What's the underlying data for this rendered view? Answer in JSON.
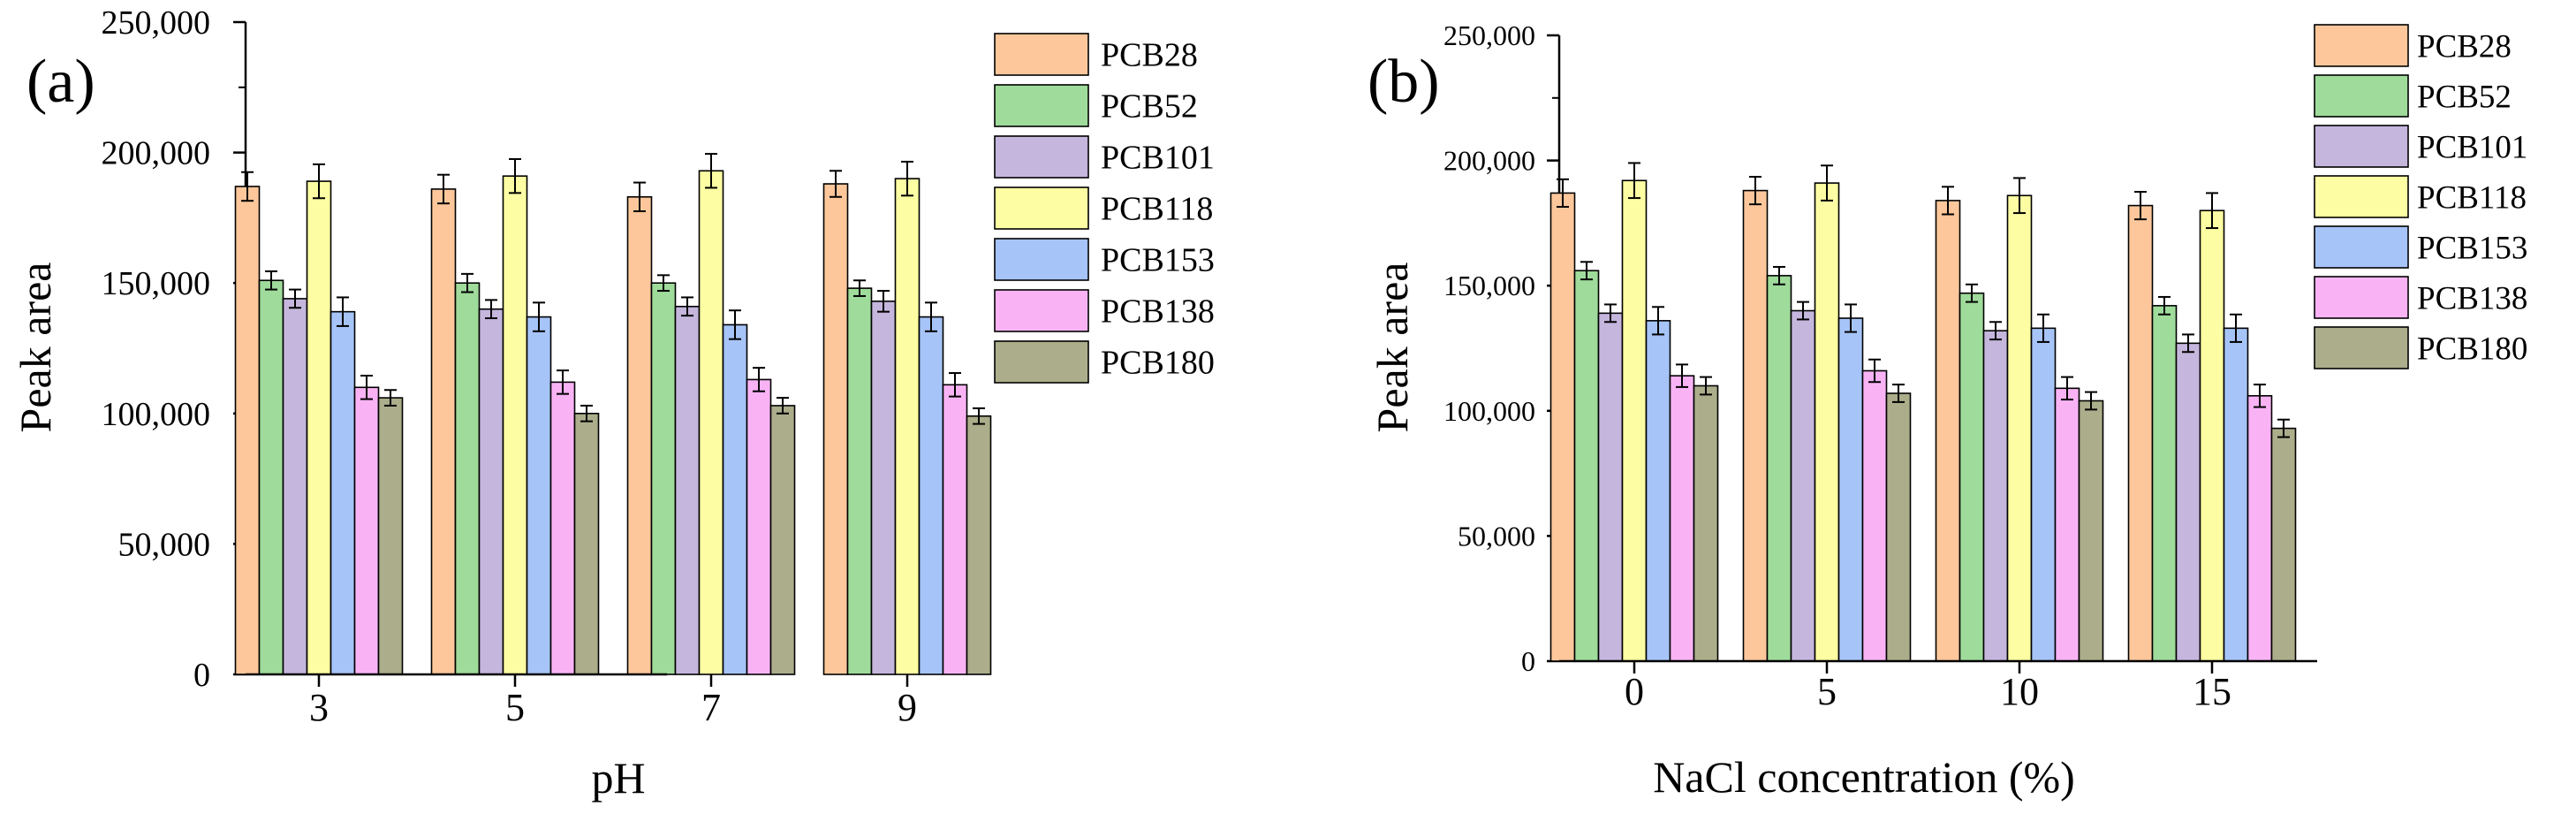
{
  "colors": {
    "PCB28": "#fdc79b",
    "PCB52": "#9fdb9b",
    "PCB101": "#c5b6dd",
    "PCB118": "#fdfda3",
    "PCB153": "#a6c4f7",
    "PCB138": "#f9b3f5",
    "PCB180": "#acad8b"
  },
  "chart_data": [
    {
      "panel": "(a)",
      "type": "bar",
      "title": "",
      "xlabel": "pH",
      "ylabel": "Peak area",
      "ylim": [
        0,
        250000
      ],
      "yticks": [
        0,
        50000,
        100000,
        150000,
        200000,
        250000
      ],
      "ytick_labels": [
        "0",
        "50,000",
        "100,000",
        "150,000",
        "200,000",
        "250,000"
      ],
      "categories": [
        "3",
        "5",
        "7",
        "9"
      ],
      "legend_position": "top-right",
      "series": [
        {
          "name": "PCB28",
          "values": [
            187000,
            186000,
            183000,
            188000
          ],
          "errors": [
            5500,
            5500,
            5500,
            5000
          ]
        },
        {
          "name": "PCB52",
          "values": [
            151000,
            150000,
            150000,
            148000
          ],
          "errors": [
            3500,
            3500,
            3000,
            3000
          ]
        },
        {
          "name": "PCB101",
          "values": [
            144000,
            140000,
            141000,
            143000
          ],
          "errors": [
            3500,
            3500,
            3500,
            4000
          ]
        },
        {
          "name": "PCB118",
          "values": [
            189000,
            191000,
            193000,
            190000
          ],
          "errors": [
            6500,
            6500,
            6500,
            6500
          ]
        },
        {
          "name": "PCB153",
          "values": [
            139000,
            137000,
            134000,
            137000
          ],
          "errors": [
            5500,
            5500,
            5500,
            5500
          ]
        },
        {
          "name": "PCB138",
          "values": [
            110000,
            112000,
            113000,
            111000
          ],
          "errors": [
            4500,
            4500,
            4500,
            4500
          ]
        },
        {
          "name": "PCB180",
          "values": [
            106000,
            100000,
            103000,
            99000
          ],
          "errors": [
            3000,
            3000,
            3000,
            3000
          ]
        }
      ]
    },
    {
      "panel": "(b)",
      "type": "bar",
      "title": "",
      "xlabel": "NaCl concentration (%)",
      "ylabel": "Peak area",
      "ylim": [
        0,
        250000
      ],
      "yticks": [
        0,
        50000,
        100000,
        150000,
        200000,
        250000
      ],
      "ytick_labels": [
        "0",
        "50,000",
        "100,000",
        "150,000",
        "200,000",
        "250,000"
      ],
      "categories": [
        "0",
        "5",
        "10",
        "15"
      ],
      "legend_position": "top-right",
      "series": [
        {
          "name": "PCB28",
          "values": [
            187000,
            188000,
            184000,
            182000
          ],
          "errors": [
            5500,
            5500,
            5500,
            5500
          ]
        },
        {
          "name": "PCB52",
          "values": [
            156000,
            154000,
            147000,
            142000
          ],
          "errors": [
            3500,
            3500,
            3500,
            3500
          ]
        },
        {
          "name": "PCB101",
          "values": [
            139000,
            140000,
            132000,
            127000
          ],
          "errors": [
            3500,
            3500,
            3500,
            3500
          ]
        },
        {
          "name": "PCB118",
          "values": [
            192000,
            191000,
            186000,
            180000
          ],
          "errors": [
            7000,
            7000,
            7000,
            7000
          ]
        },
        {
          "name": "PCB153",
          "values": [
            136000,
            137000,
            133000,
            133000
          ],
          "errors": [
            5500,
            5500,
            5500,
            5500
          ]
        },
        {
          "name": "PCB138",
          "values": [
            114000,
            116000,
            109000,
            106000
          ],
          "errors": [
            4500,
            4500,
            4500,
            4500
          ]
        },
        {
          "name": "PCB180",
          "values": [
            110000,
            107000,
            104000,
            93000
          ],
          "errors": [
            3500,
            3500,
            3500,
            3500
          ]
        }
      ]
    }
  ]
}
